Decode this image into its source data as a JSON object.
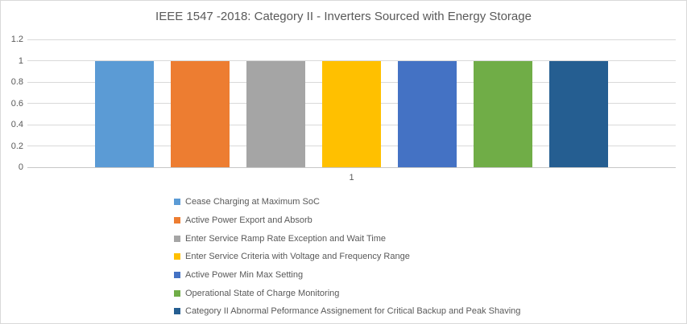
{
  "chart_data": {
    "type": "bar",
    "title": "IEEE 1547 -2018: Category II - Inverters Sourced with Energy Storage",
    "categories": [
      "1"
    ],
    "series": [
      {
        "name": "Cease Charging at Maximum SoC",
        "values": [
          1
        ],
        "color": "#5B9BD5"
      },
      {
        "name": "Active Power Export and Absorb",
        "values": [
          1
        ],
        "color": "#ED7D31"
      },
      {
        "name": "Enter Service Ramp Rate Exception and Wait Time",
        "values": [
          1
        ],
        "color": "#A5A5A5"
      },
      {
        "name": "Enter Service Criteria with Voltage and Frequency Range",
        "values": [
          1
        ],
        "color": "#FFC000"
      },
      {
        "name": "Active Power Min Max Setting",
        "values": [
          1
        ],
        "color": "#4472C4"
      },
      {
        "name": "Operational State of Charge Monitoring",
        "values": [
          1
        ],
        "color": "#70AD47"
      },
      {
        "name": "Category II Abnormal Peformance Assignement for Critical Backup and Peak Shaving",
        "values": [
          1
        ],
        "color": "#255E91"
      }
    ],
    "xlabel": "",
    "ylabel": "",
    "ylim": [
      0,
      1.2
    ],
    "yticks": [
      0,
      0.2,
      0.4,
      0.6,
      0.8,
      1,
      1.2
    ],
    "ytick_labels": [
      "0",
      "0.2",
      "0.4",
      "0.6",
      "0.8",
      "1",
      "1.2"
    ],
    "grid": true,
    "legend_position": "bottom-left",
    "colors": {
      "text": "#595959",
      "gridline": "#D9D9D9",
      "axis_line": "#C6C6C6",
      "border": "#D9D9D9",
      "background": "#FFFFFF"
    }
  }
}
